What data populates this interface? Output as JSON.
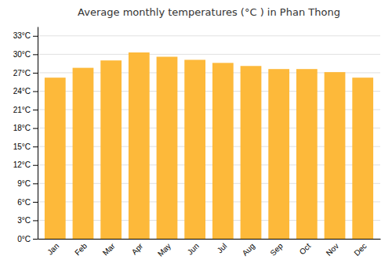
{
  "chart_data": {
    "type": "bar",
    "title": "Average monthly temperatures (°C ) in Phan Thong",
    "categories": [
      "Jan",
      "Feb",
      "Mar",
      "Apr",
      "May",
      "Jun",
      "Jul",
      "Aug",
      "Sep",
      "Oct",
      "Nov",
      "Dec"
    ],
    "values": [
      26.2,
      27.8,
      29.0,
      30.3,
      29.6,
      29.1,
      28.6,
      28.1,
      27.6,
      27.6,
      27.1,
      26.2
    ],
    "color": "#FDB93A",
    "ylim": [
      0,
      34.5
    ],
    "yticks": [
      {
        "value": 0,
        "label": "0°C"
      },
      {
        "value": 3,
        "label": "3°C"
      },
      {
        "value": 6,
        "label": "6°C"
      },
      {
        "value": 9,
        "label": "9°C"
      },
      {
        "value": 12,
        "label": "12°C"
      },
      {
        "value": 15,
        "label": "15°C"
      },
      {
        "value": 18,
        "label": "18°C"
      },
      {
        "value": 21,
        "label": "21°C"
      },
      {
        "value": 24,
        "label": "24°C"
      },
      {
        "value": 27,
        "label": "27°C"
      },
      {
        "value": 30,
        "label": "30°C"
      },
      {
        "value": 33,
        "label": "33°C"
      }
    ],
    "grid": true
  }
}
